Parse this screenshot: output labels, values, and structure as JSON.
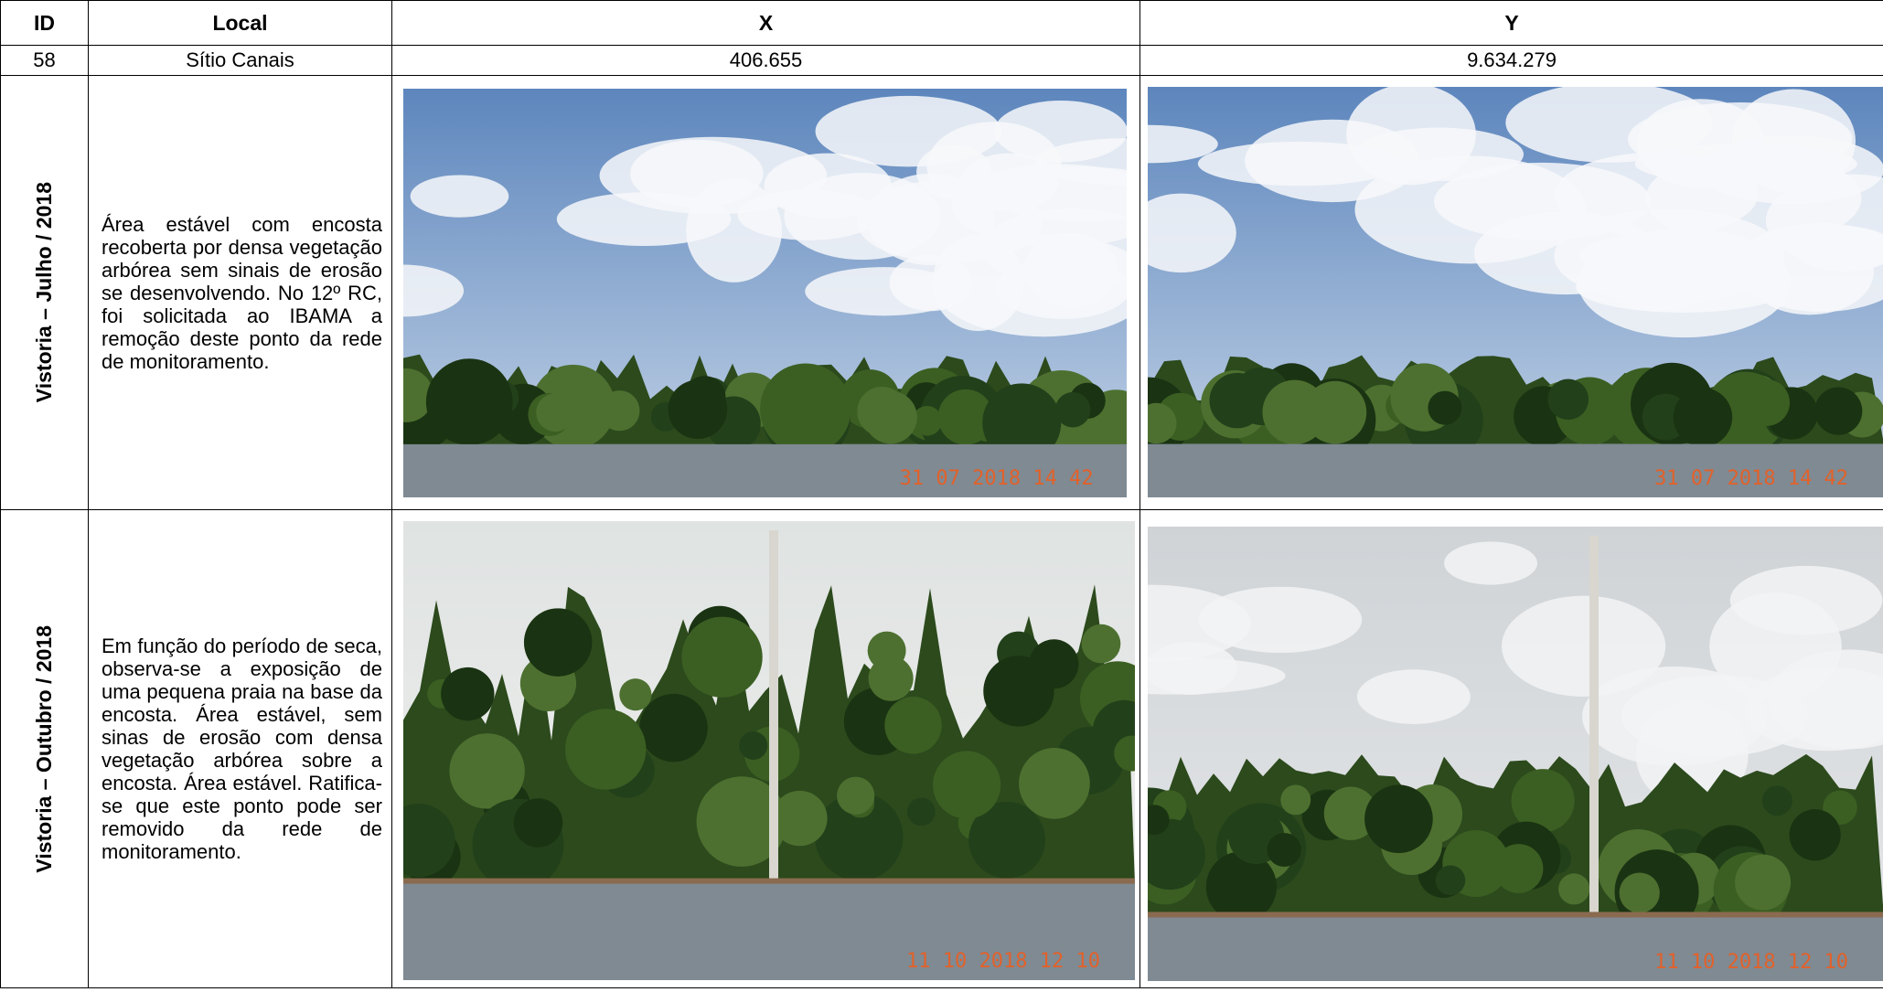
{
  "table": {
    "header": [
      "ID",
      "Local",
      "X",
      "Y"
    ],
    "row": [
      "58",
      "Sítio Canais",
      "406.655",
      "9.634.279"
    ],
    "inspections": [
      {
        "label": "Vistoria – Julho / 2018",
        "text": "Área estável com encosta recoberta por densa vegetação arbórea sem sinais de erosão se desenvolvendo. No 12º RC, foi solicitada ao IBAMA a remoção deste ponto da rede de monitoramento.",
        "photo_stamps": [
          "31 07 2018 14 42",
          "31 07 2018 14 42"
        ]
      },
      {
        "label": "Vistoria – Outubro / 2018",
        "text": "Em função do período de seca, observa-se a exposição de uma pequena praia na base da encosta. Área estável, sem sinas de erosão com densa vegetação arbórea sobre a encosta. Área estável. Ratifica-se que este ponto pode ser removido da rede de monitoramento.",
        "photo_stamps": [
          "11 10 2018 12 10",
          "11 10 2018 12 10"
        ]
      }
    ]
  }
}
